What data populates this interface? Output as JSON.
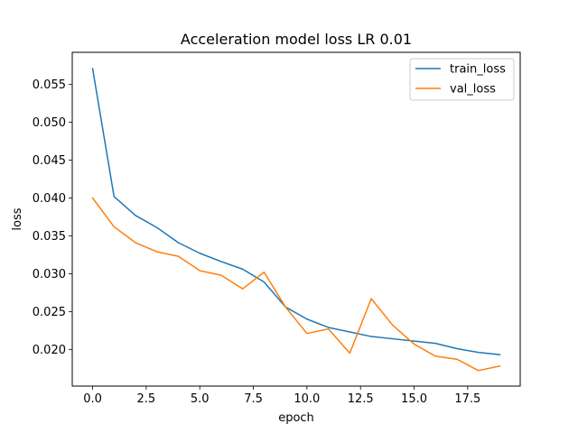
{
  "chart_data": {
    "type": "line",
    "title": "Acceleration model loss LR 0.01",
    "xlabel": "epoch",
    "ylabel": "loss",
    "xlim": [
      -0.95,
      19.95
    ],
    "ylim": [
      0.01515,
      0.05925
    ],
    "x_ticks": [
      0,
      2.5,
      5,
      7.5,
      10,
      12.5,
      15,
      17.5
    ],
    "x_tick_labels": [
      "0.0",
      "2.5",
      "5.0",
      "7.5",
      "10.0",
      "12.5",
      "15.0",
      "17.5"
    ],
    "y_ticks": [
      0.02,
      0.025,
      0.03,
      0.035,
      0.04,
      0.045,
      0.05,
      0.055
    ],
    "y_tick_labels": [
      "0.020",
      "0.025",
      "0.030",
      "0.035",
      "0.040",
      "0.045",
      "0.050",
      "0.055"
    ],
    "grid": false,
    "legend_position": "top-right",
    "x": [
      0,
      1,
      2,
      3,
      4,
      5,
      6,
      7,
      8,
      9,
      10,
      11,
      12,
      13,
      14,
      15,
      16,
      17,
      18,
      19
    ],
    "series": [
      {
        "name": "train_loss",
        "color": "#1f77b4",
        "values": [
          0.0571,
          0.0402,
          0.0377,
          0.0361,
          0.0341,
          0.0327,
          0.0316,
          0.0306,
          0.0289,
          0.0256,
          0.024,
          0.0229,
          0.0223,
          0.0217,
          0.0214,
          0.0211,
          0.0208,
          0.0201,
          0.0196,
          0.0193
        ]
      },
      {
        "name": "val_loss",
        "color": "#ff7f0e",
        "values": [
          0.04,
          0.0362,
          0.0341,
          0.0329,
          0.0323,
          0.0304,
          0.0298,
          0.028,
          0.0302,
          0.0256,
          0.0221,
          0.0227,
          0.0195,
          0.0267,
          0.0232,
          0.0207,
          0.0191,
          0.0187,
          0.0172,
          0.0178
        ]
      }
    ]
  }
}
